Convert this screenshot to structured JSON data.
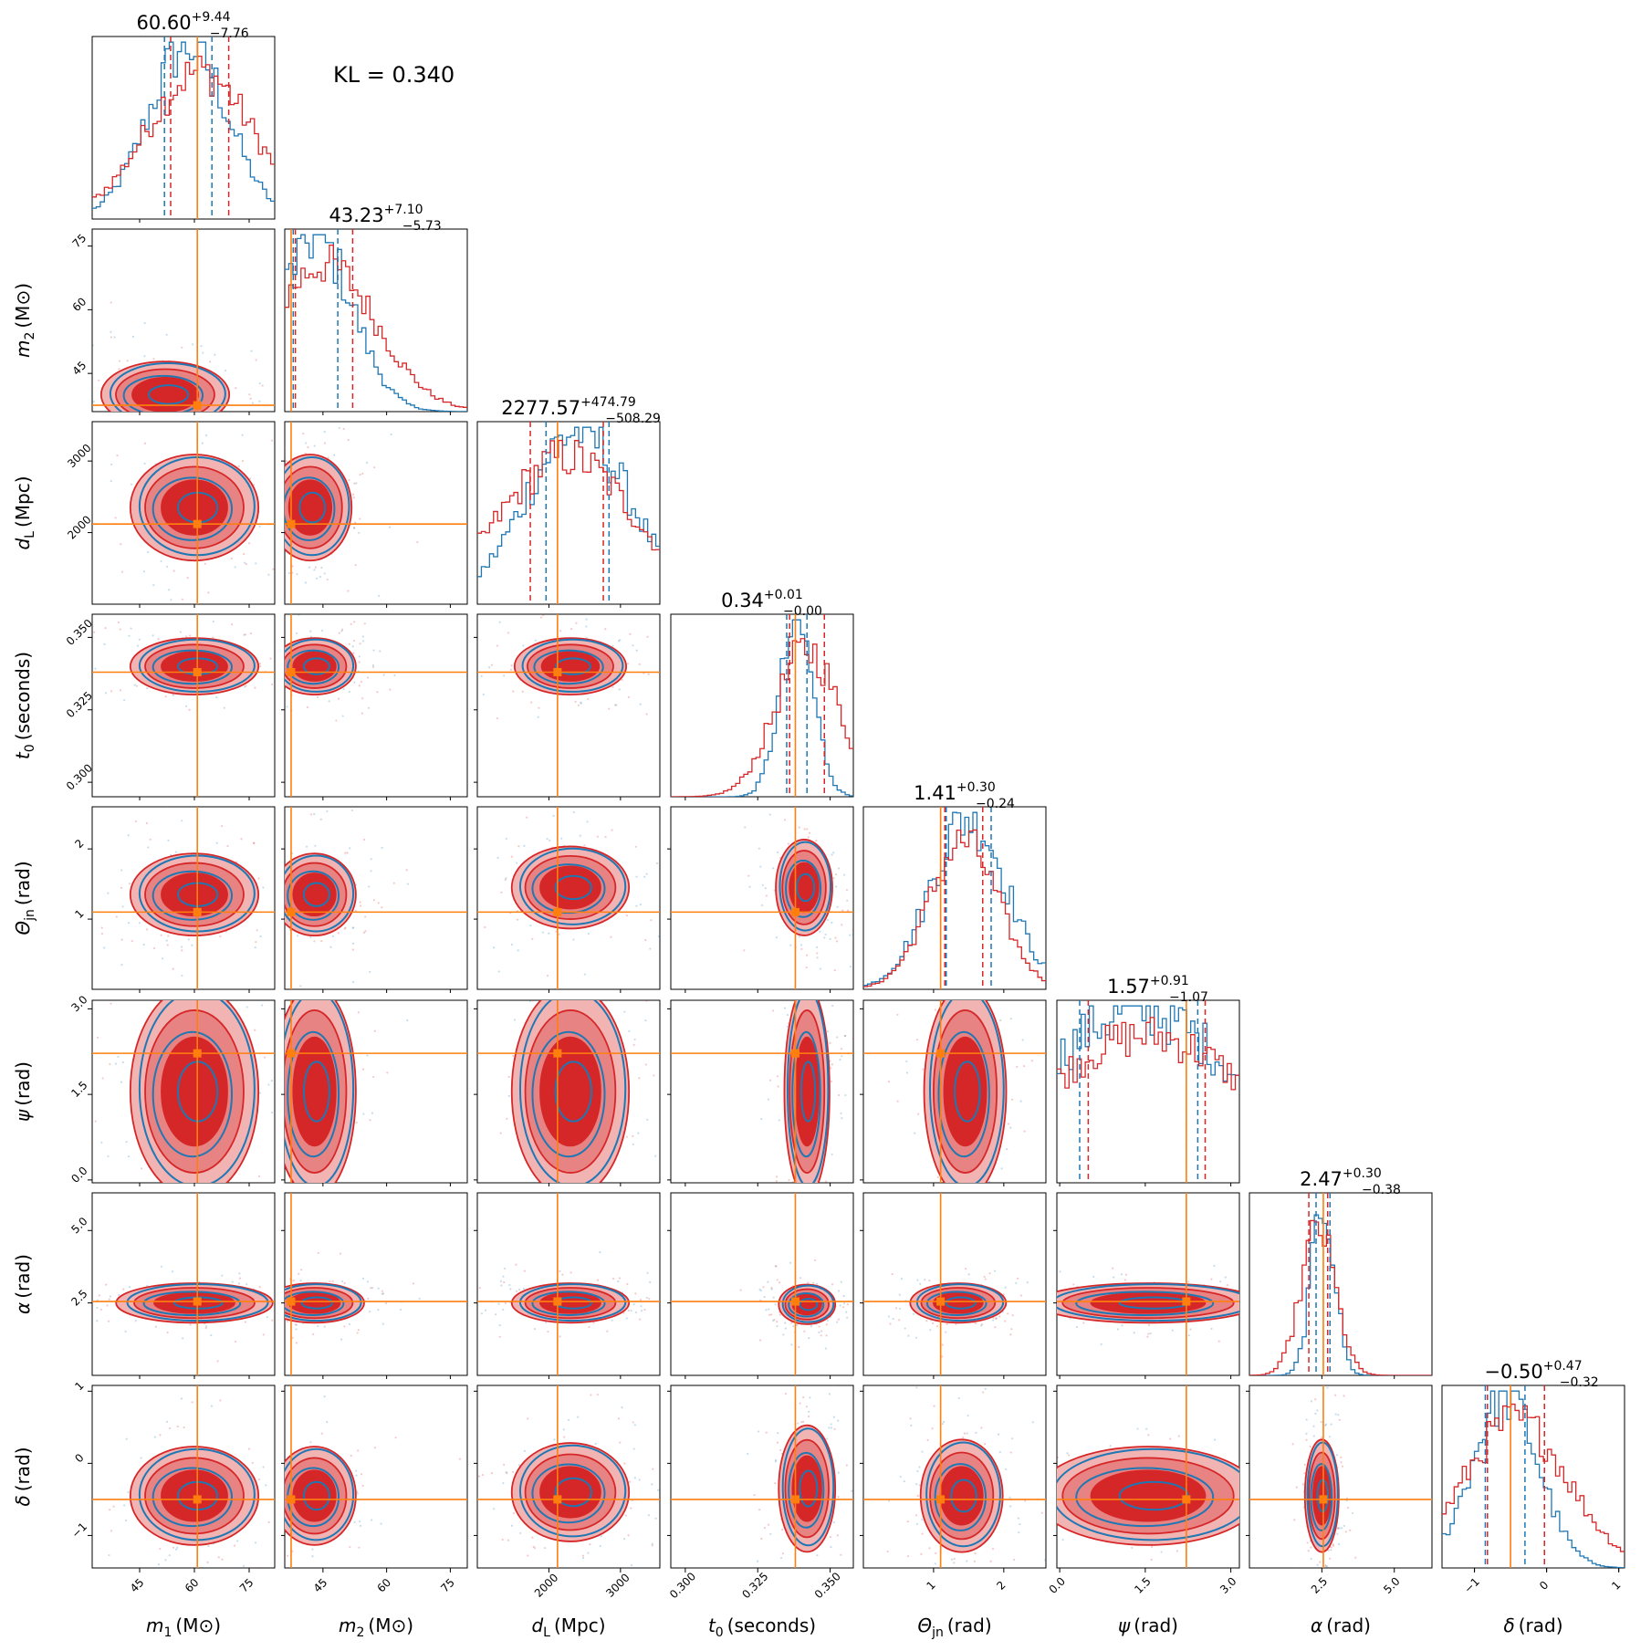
{
  "kl_label": "KL = 0.340",
  "colors": {
    "model_a": "#1f77b4",
    "model_b": "#d62728",
    "truth": "#ff7f0e",
    "band_light": "#f2b3b3",
    "band_mid": "#e88383"
  },
  "chart_data": {
    "type": "corner",
    "parameters": [
      {
        "key": "m1",
        "label_main": "m",
        "label_sub": "1",
        "label_unit": "(M⊙)",
        "range": [
          32,
          82
        ],
        "ticks": [
          45,
          60,
          75
        ],
        "tick_labels": [
          "45",
          "60",
          "75"
        ],
        "truth": 60.8,
        "title_value": "60.60",
        "title_plus": "+9.44",
        "title_minus": "−7.76",
        "quantiles_blue": [
          51.8,
          64.8
        ],
        "quantiles_red": [
          53.5,
          69.4
        ]
      },
      {
        "key": "m2",
        "label_main": "m",
        "label_sub": "2",
        "label_unit": "(M⊙)",
        "range": [
          36,
          79
        ],
        "ticks": [
          45,
          60,
          75
        ],
        "tick_labels": [
          "45",
          "60",
          "75"
        ],
        "truth": 37.5,
        "title_value": "43.23",
        "title_plus": "+7.10",
        "title_minus": "−5.73",
        "quantiles_blue": [
          38.0,
          48.5
        ],
        "quantiles_red": [
          38.5,
          52.0
        ]
      },
      {
        "key": "dL",
        "label_main": "d",
        "label_sub": "L",
        "label_unit": "(Mpc)",
        "range": [
          1000,
          3550
        ],
        "ticks": [
          2000,
          3000
        ],
        "tick_labels": [
          "2000",
          "3000"
        ],
        "truth": 2120,
        "title_value": "2277.57",
        "title_plus": "+474.79",
        "title_minus": "−508.29",
        "quantiles_blue": [
          1960,
          2840
        ],
        "quantiles_red": [
          1740,
          2760
        ]
      },
      {
        "key": "t0",
        "label_main": "t",
        "label_sub": "0",
        "label_unit": "(seconds)",
        "range": [
          0.295,
          0.358
        ],
        "ticks": [
          0.3,
          0.325,
          0.35
        ],
        "tick_labels": [
          "0.300",
          "0.325",
          "0.350"
        ],
        "truth": 0.338,
        "title_value": "0.34",
        "title_plus": "+0.01",
        "title_minus": "−0.00",
        "quantiles_blue": [
          0.335,
          0.342
        ],
        "quantiles_red": [
          0.336,
          0.348
        ]
      },
      {
        "key": "theta",
        "label_main": "Θ",
        "label_sub": "jn",
        "label_unit": "(rad)",
        "range": [
          0,
          2.6
        ],
        "ticks": [
          1,
          2
        ],
        "tick_labels": [
          "1",
          "2"
        ],
        "truth": 1.1,
        "title_value": "1.41",
        "title_plus": "+0.30",
        "title_minus": "−0.24",
        "quantiles_blue": [
          1.18,
          1.82
        ],
        "quantiles_red": [
          1.16,
          1.7
        ]
      },
      {
        "key": "psi",
        "label_main": "ψ",
        "label_sub": "",
        "label_unit": "(rad)",
        "range": [
          -0.05,
          3.15
        ],
        "ticks": [
          0.0,
          1.5,
          3.0
        ],
        "tick_labels": [
          "0.0",
          "1.5",
          "3.0"
        ],
        "truth": 2.22,
        "title_value": "1.57",
        "title_plus": "+0.91",
        "title_minus": "−1.07",
        "quantiles_blue": [
          0.35,
          2.42
        ],
        "quantiles_red": [
          0.5,
          2.55
        ]
      },
      {
        "key": "alpha",
        "label_main": "α",
        "label_sub": "",
        "label_unit": "(rad)",
        "range": [
          0,
          6.3
        ],
        "ticks": [
          2.5,
          5.0
        ],
        "tick_labels": [
          "2.5",
          "5.0"
        ],
        "truth": 2.55,
        "title_value": "2.47",
        "title_plus": "+0.30",
        "title_minus": "−0.38",
        "quantiles_blue": [
          2.3,
          2.78
        ],
        "quantiles_red": [
          2.05,
          2.7
        ]
      },
      {
        "key": "delta",
        "label_main": "δ",
        "label_sub": "",
        "label_unit": "(rad)",
        "range": [
          -1.45,
          1.08
        ],
        "ticks": [
          -1,
          0,
          1
        ],
        "tick_labels": [
          "−1",
          "0",
          "1"
        ],
        "truth": -0.5,
        "title_value": "−0.50",
        "title_plus": "+0.47",
        "title_minus": "−0.32",
        "quantiles_blue": [
          -0.85,
          -0.3
        ],
        "quantiles_red": [
          -0.82,
          -0.03
        ]
      }
    ],
    "y_tick_labels_m2_row": [
      "45",
      "60",
      "75"
    ],
    "extra_y_ticks": {
      "m2": {
        "ticks": [
          45,
          60,
          75
        ],
        "tick_labels": [
          "45",
          "60",
          "75"
        ]
      },
      "dL": {
        "ticks": [
          2000,
          3000
        ],
        "tick_labels": [
          "2000",
          "3000"
        ]
      },
      "t0": {
        "ticks": [
          0.3,
          0.325,
          0.35
        ],
        "tick_labels": [
          "0.300",
          "0.325",
          "0.350"
        ]
      },
      "theta": {
        "ticks": [
          1,
          2
        ],
        "tick_labels": [
          "1",
          "2"
        ]
      },
      "psi": {
        "ticks": [
          0.0,
          1.5,
          3.0
        ],
        "tick_labels": [
          "0.0",
          "1.5",
          "3.0"
        ]
      },
      "alpha": {
        "ticks": [
          2.5,
          5.0
        ],
        "tick_labels": [
          "2.5",
          "5.0"
        ]
      },
      "delta": {
        "ticks": [
          -1,
          0,
          1
        ],
        "tick_labels": [
          "−1",
          "0",
          "1"
        ]
      }
    },
    "pair_blobs": {
      "m1|m2": {
        "cx": 52,
        "cy": 40,
        "sx": 9,
        "sy": 4
      },
      "m1|dL": {
        "cx": 60,
        "cy": 2350,
        "sx": 9,
        "sy": 380
      },
      "m2|dL": {
        "cx": 42,
        "cy": 2350,
        "sx": 5,
        "sy": 380
      },
      "m1|t0": {
        "cx": 60,
        "cy": 0.34,
        "sx": 9,
        "sy": 0.005
      },
      "m2|t0": {
        "cx": 43,
        "cy": 0.34,
        "sx": 5,
        "sy": 0.005
      },
      "dL|t0": {
        "cx": 2300,
        "cy": 0.34,
        "sx": 400,
        "sy": 0.005
      },
      "m1|theta": {
        "cx": 60,
        "cy": 1.35,
        "sx": 9,
        "sy": 0.3
      },
      "m2|theta": {
        "cx": 43,
        "cy": 1.35,
        "sx": 5,
        "sy": 0.3
      },
      "dL|theta": {
        "cx": 2300,
        "cy": 1.45,
        "sx": 420,
        "sy": 0.3
      },
      "t0|theta": {
        "cx": 0.341,
        "cy": 1.45,
        "sx": 0.005,
        "sy": 0.35
      },
      "m1|psi": {
        "cx": 60,
        "cy": 1.55,
        "sx": 9,
        "sy": 0.95
      },
      "m2|psi": {
        "cx": 43,
        "cy": 1.55,
        "sx": 5,
        "sy": 0.95
      },
      "dL|psi": {
        "cx": 2300,
        "cy": 1.55,
        "sx": 420,
        "sy": 0.95
      },
      "t0|psi": {
        "cx": 0.342,
        "cy": 1.55,
        "sx": 0.004,
        "sy": 0.95
      },
      "theta|psi": {
        "cx": 1.45,
        "cy": 1.55,
        "sx": 0.3,
        "sy": 0.95
      },
      "m1|alpha": {
        "cx": 60,
        "cy": 2.5,
        "sx": 11,
        "sy": 0.35
      },
      "m2|alpha": {
        "cx": 43,
        "cy": 2.5,
        "sx": 6,
        "sy": 0.35
      },
      "dL|alpha": {
        "cx": 2300,
        "cy": 2.5,
        "sx": 420,
        "sy": 0.35
      },
      "t0|alpha": {
        "cx": 0.342,
        "cy": 2.45,
        "sx": 0.005,
        "sy": 0.35
      },
      "theta|alpha": {
        "cx": 1.35,
        "cy": 2.5,
        "sx": 0.35,
        "sy": 0.35
      },
      "psi|alpha": {
        "cx": 1.55,
        "cy": 2.5,
        "sx": 1.0,
        "sy": 0.35
      },
      "m1|delta": {
        "cx": 60,
        "cy": -0.45,
        "sx": 9,
        "sy": 0.35
      },
      "m2|delta": {
        "cx": 43,
        "cy": -0.45,
        "sx": 5,
        "sy": 0.35
      },
      "dL|delta": {
        "cx": 2300,
        "cy": -0.4,
        "sx": 420,
        "sy": 0.35
      },
      "t0|delta": {
        "cx": 0.342,
        "cy": -0.35,
        "sx": 0.005,
        "sy": 0.45
      },
      "theta|delta": {
        "cx": 1.4,
        "cy": -0.45,
        "sx": 0.3,
        "sy": 0.4
      },
      "psi|delta": {
        "cx": 1.55,
        "cy": -0.45,
        "sx": 1.0,
        "sy": 0.35
      },
      "alpha|delta": {
        "cx": 2.5,
        "cy": -0.45,
        "sx": 0.3,
        "sy": 0.4
      }
    }
  }
}
